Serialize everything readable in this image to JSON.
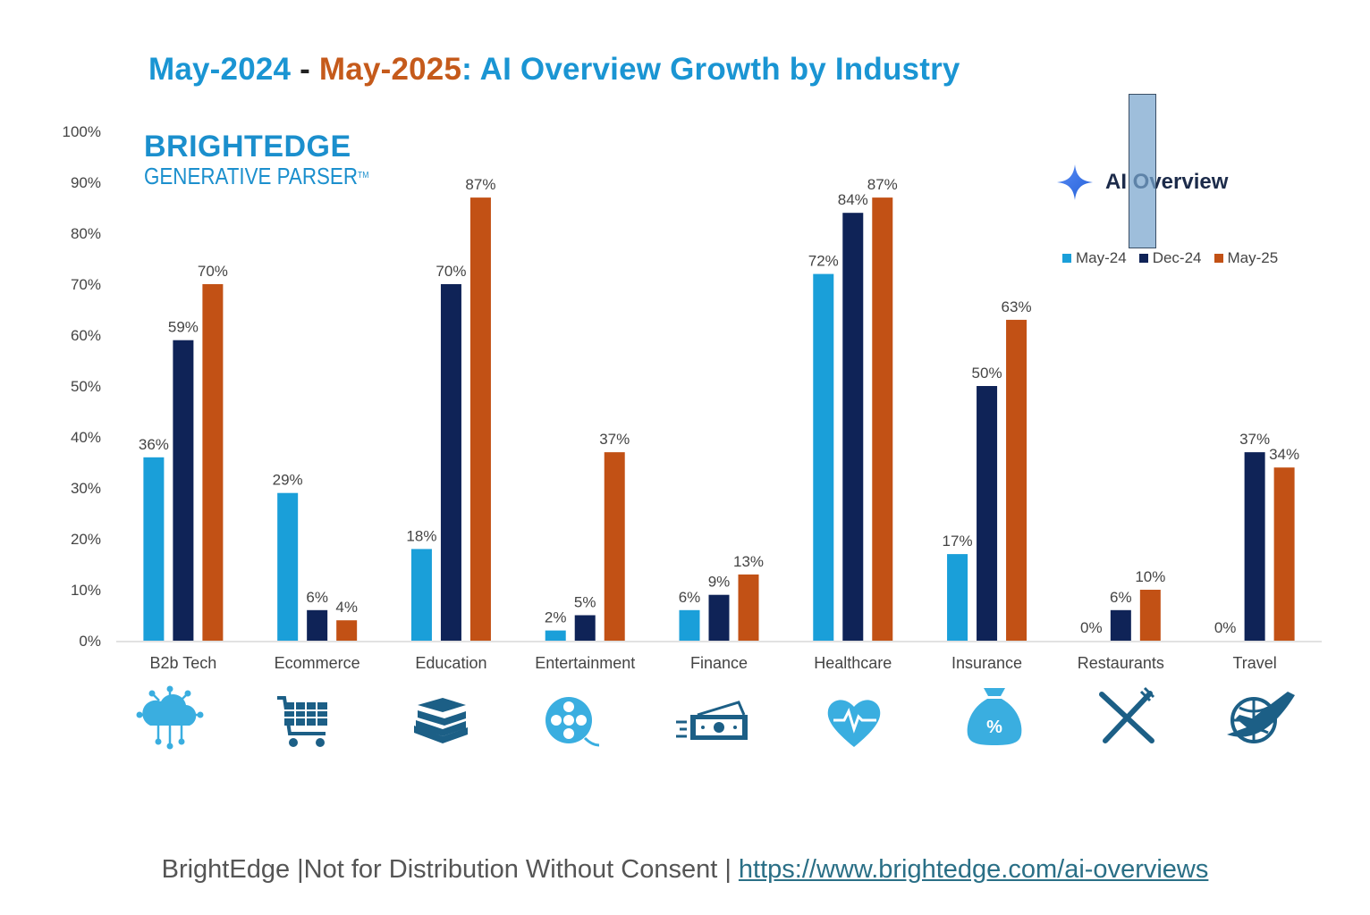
{
  "title": {
    "part1": "May-2024",
    "sep": " - ",
    "part2": "May-2025",
    "part3": ": AI Overview Growth by Industry"
  },
  "logo": {
    "line1": "BRIGHTEDGE",
    "line2": "GENERATIVE PARSER",
    "tm": "TM"
  },
  "badge": {
    "label": "AI Overview",
    "icon": "sparkle-icon"
  },
  "colors": {
    "may24": "#1a9fd9",
    "dec24": "#0f2357",
    "may25": "#c25115",
    "axis": "#d9d9d9",
    "icon_light": "#3aaee0",
    "icon_dark": "#1c5f86"
  },
  "chart_data": {
    "type": "bar",
    "title": "May-2024 - May-2025: AI Overview Growth by Industry",
    "xlabel": "",
    "ylabel": "",
    "ylim": [
      0,
      100
    ],
    "yticks": [
      "0%",
      "10%",
      "20%",
      "30%",
      "40%",
      "50%",
      "60%",
      "70%",
      "80%",
      "90%",
      "100%"
    ],
    "categories": [
      "B2b Tech",
      "Ecommerce",
      "Education",
      "Entertainment",
      "Finance",
      "Healthcare",
      "Insurance",
      "Restaurants",
      "Travel"
    ],
    "series": [
      {
        "name": "May-24",
        "values": [
          36,
          29,
          18,
          2,
          6,
          72,
          17,
          0,
          0
        ]
      },
      {
        "name": "Dec-24",
        "values": [
          59,
          6,
          70,
          5,
          9,
          84,
          50,
          6,
          37
        ]
      },
      {
        "name": "May-25",
        "values": [
          70,
          4,
          87,
          37,
          13,
          87,
          63,
          10,
          34
        ]
      }
    ],
    "legend_position": "top-right",
    "grid": false
  },
  "category_icons": [
    "cloud-network-icon",
    "shopping-cart-icon",
    "books-icon",
    "film-reel-icon",
    "money-icon",
    "heart-pulse-icon",
    "money-bag-icon",
    "fork-knife-icon",
    "globe-plane-icon"
  ],
  "footer": {
    "text": "BrightEdge |Not for Distribution Without Consent | ",
    "link": "https://www.brightedge.com/ai-overviews"
  }
}
